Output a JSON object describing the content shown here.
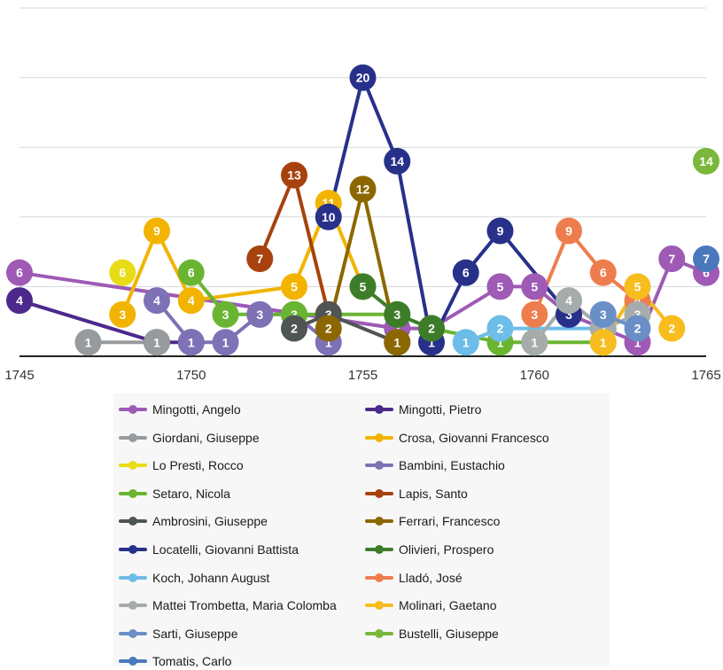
{
  "chart_data": {
    "type": "line",
    "title": "",
    "xlabel": "",
    "ylabel": "",
    "xlim": [
      1745,
      1765
    ],
    "ylim": [
      0,
      25
    ],
    "x_ticks": [
      1745,
      1750,
      1755,
      1760,
      1765
    ],
    "y_gridlines": [
      5,
      10,
      15,
      20,
      25
    ],
    "grid": true,
    "y_tick_labels_visible": false,
    "data_labels": true,
    "marker": "circle",
    "legend": "bottom",
    "series": [
      {
        "name": "Mingotti, Angelo",
        "color": "#9e5ab5",
        "x": [
          1745,
          1756,
          1757,
          1759,
          1760,
          1761,
          1763,
          1764,
          1765
        ],
        "y": [
          6,
          2,
          2,
          5,
          5,
          3,
          1,
          7,
          6
        ]
      },
      {
        "name": "Mingotti, Pietro",
        "color": "#4b2a8c",
        "x": [
          1745,
          1749,
          1750
        ],
        "y": [
          4,
          1,
          1
        ]
      },
      {
        "name": "Giordani, Giuseppe",
        "color": "#979b9e",
        "x": [
          1747,
          1749
        ],
        "y": [
          1,
          1
        ]
      },
      {
        "name": "Crosa, Giovanni Francesco",
        "color": "#f2b400",
        "x": [
          1748,
          1749,
          1750,
          1753,
          1754,
          1755
        ],
        "y": [
          3,
          9,
          4,
          5,
          11,
          5
        ]
      },
      {
        "name": "Lo Presti, Rocco",
        "color": "#e8dc16",
        "x": [
          1748
        ],
        "y": [
          6
        ]
      },
      {
        "name": "Bambini, Eustachio",
        "color": "#7e71b5",
        "x": [
          1749,
          1750,
          1751,
          1752,
          1753,
          1754
        ],
        "y": [
          4,
          1,
          1,
          3,
          3,
          1
        ]
      },
      {
        "name": "Setaro, Nicola",
        "color": "#69b531",
        "x": [
          1750,
          1751,
          1753,
          1756,
          1757,
          1759,
          1760,
          1762
        ],
        "y": [
          6,
          3,
          3,
          3,
          2,
          1,
          1,
          1
        ]
      },
      {
        "name": "Lapis, Santo",
        "color": "#a7420e",
        "x": [
          1752,
          1753,
          1754
        ],
        "y": [
          7,
          13,
          3
        ]
      },
      {
        "name": "Ambrosini, Giuseppe",
        "color": "#4f5455",
        "x": [
          1753,
          1754,
          1756
        ],
        "y": [
          2,
          3,
          1
        ]
      },
      {
        "name": "Ferrari, Francesco",
        "color": "#8c6700",
        "x": [
          1754,
          1755,
          1756
        ],
        "y": [
          2,
          12,
          1
        ]
      },
      {
        "name": "Locatelli, Giovanni Battista",
        "color": "#27318a",
        "x": [
          1754,
          1755,
          1756,
          1757,
          1758,
          1759,
          1761
        ],
        "y": [
          10,
          20,
          14,
          1,
          6,
          9,
          3
        ]
      },
      {
        "name": "Olivieri, Prospero",
        "color": "#3d7d2a",
        "x": [
          1755,
          1756,
          1757
        ],
        "y": [
          5,
          3,
          2
        ]
      },
      {
        "name": "Koch, Johann August",
        "color": "#6cbde8",
        "x": [
          1758,
          1759,
          1762
        ],
        "y": [
          1,
          2,
          2
        ]
      },
      {
        "name": "Lladó, José",
        "color": "#ee7d4e",
        "x": [
          1760,
          1761,
          1762,
          1763
        ],
        "y": [
          3,
          9,
          6,
          4
        ]
      },
      {
        "name": "Mattei Trombetta, Maria Colomba",
        "color": "#a6abab",
        "x": [
          1760,
          1761,
          1762,
          1763
        ],
        "y": [
          1,
          4,
          2,
          3
        ]
      },
      {
        "name": "Molinari, Gaetano",
        "color": "#f7bc1d",
        "x": [
          1762,
          1763,
          1764
        ],
        "y": [
          1,
          5,
          2
        ]
      },
      {
        "name": "Sarti, Giuseppe",
        "color": "#6a8fc7",
        "x": [
          1762,
          1763
        ],
        "y": [
          3,
          2
        ]
      },
      {
        "name": "Bustelli, Giuseppe",
        "color": "#7ab73a",
        "x": [
          1765
        ],
        "y": [
          14
        ]
      },
      {
        "name": "Tomatis, Carlo",
        "color": "#4a78bd",
        "x": [
          1765
        ],
        "y": [
          7
        ]
      }
    ]
  }
}
